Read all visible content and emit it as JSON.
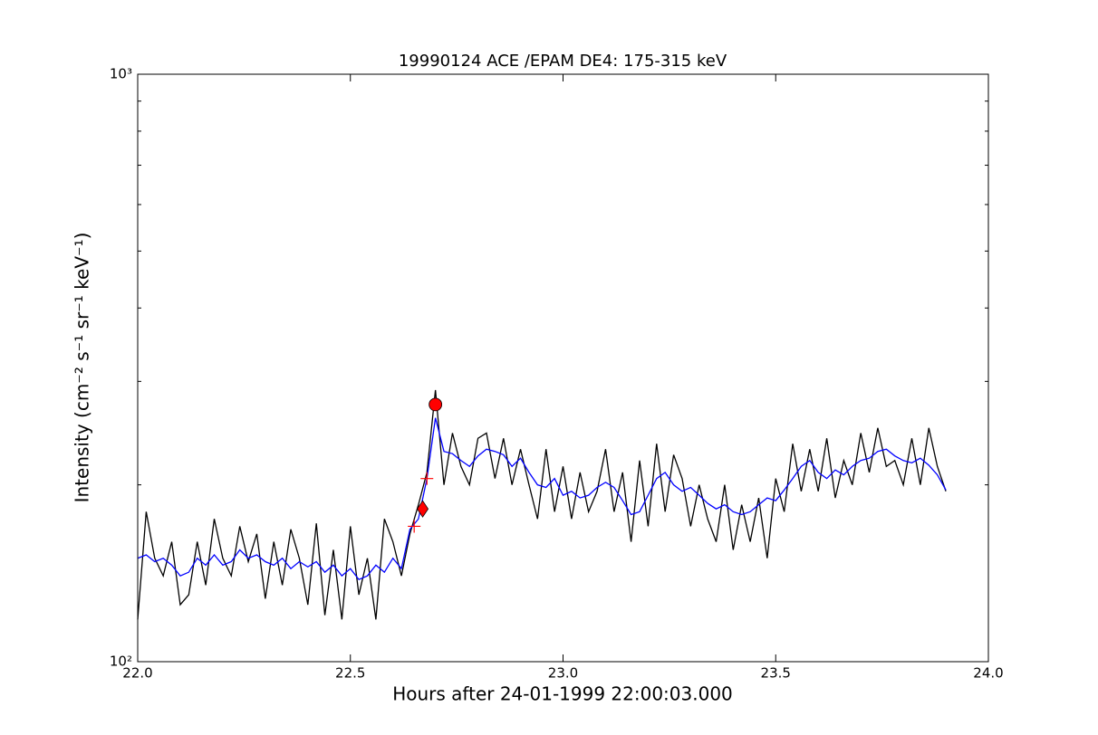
{
  "chart_data": {
    "type": "line",
    "title": "19990124 ACE /EPAM DE4: 175-315 keV",
    "x_label": "Hours after 24-01-1999 22:00:03.000",
    "y_label": "Intensity (cm⁻² s⁻¹ sr⁻¹ keV⁻¹)",
    "log_y": true,
    "xlim": [
      22,
      24
    ],
    "ylim": [
      100,
      1000
    ],
    "xticks": [
      {
        "value": 22,
        "label": "22.0"
      },
      {
        "value": 22.5,
        "label": "22.5"
      },
      {
        "value": 23,
        "label": "23.0"
      },
      {
        "value": 23.5,
        "label": "23.5"
      },
      {
        "value": 24,
        "label": "24.0"
      }
    ],
    "yticks": [
      {
        "value": 100,
        "label": "10²"
      },
      {
        "value": 1000,
        "label": "10³"
      }
    ],
    "yminor": [
      200,
      300,
      400,
      500,
      600,
      700,
      800,
      900
    ],
    "x": [
      22.0,
      22.02,
      22.04,
      22.06,
      22.08,
      22.1,
      22.12,
      22.14,
      22.16,
      22.18,
      22.2,
      22.22,
      22.24,
      22.26,
      22.28,
      22.3,
      22.32,
      22.34,
      22.36,
      22.38,
      22.4,
      22.42,
      22.44,
      22.46,
      22.48,
      22.5,
      22.52,
      22.54,
      22.56,
      22.58,
      22.6,
      22.62,
      22.64,
      22.66,
      22.68,
      22.7,
      22.72,
      22.74,
      22.76,
      22.78,
      22.8,
      22.82,
      22.84,
      22.86,
      22.88,
      22.9,
      22.92,
      22.94,
      22.96,
      22.98,
      23.0,
      23.02,
      23.04,
      23.06,
      23.08,
      23.1,
      23.12,
      23.14,
      23.16,
      23.18,
      23.2,
      23.22,
      23.24,
      23.26,
      23.28,
      23.3,
      23.32,
      23.34,
      23.36,
      23.38,
      23.4,
      23.42,
      23.44,
      23.46,
      23.48,
      23.5,
      23.52,
      23.54,
      23.56,
      23.58,
      23.6,
      23.62,
      23.64,
      23.66,
      23.68,
      23.7,
      23.72,
      23.74,
      23.76,
      23.78,
      23.8,
      23.82,
      23.84,
      23.86,
      23.88,
      23.9
    ],
    "series": [
      {
        "color": "#000000",
        "values": [
          118,
          180,
          150,
          140,
          160,
          125,
          130,
          160,
          135,
          175,
          150,
          140,
          170,
          148,
          165,
          128,
          160,
          135,
          168,
          150,
          125,
          172,
          120,
          155,
          118,
          170,
          130,
          150,
          118,
          175,
          160,
          140,
          165,
          185,
          210,
          290,
          200,
          245,
          215,
          200,
          240,
          245,
          205,
          240,
          200,
          230,
          200,
          175,
          230,
          180,
          215,
          175,
          210,
          180,
          195,
          230,
          180,
          210,
          160,
          220,
          170,
          235,
          180,
          225,
          205,
          170,
          200,
          175,
          160,
          200,
          155,
          185,
          160,
          190,
          150,
          205,
          180,
          235,
          195,
          230,
          195,
          240,
          190,
          220,
          200,
          245,
          210,
          250,
          215,
          220,
          200,
          240,
          200,
          250,
          215,
          195
        ]
      },
      {
        "color": "#0000ff",
        "values": [
          150,
          152,
          148,
          150,
          146,
          140,
          142,
          150,
          146,
          152,
          146,
          148,
          155,
          150,
          152,
          148,
          146,
          150,
          144,
          148,
          145,
          148,
          142,
          146,
          140,
          144,
          138,
          140,
          146,
          142,
          150,
          144,
          168,
          175,
          205,
          260,
          228,
          226,
          220,
          215,
          224,
          230,
          228,
          225,
          215,
          222,
          210,
          200,
          198,
          205,
          192,
          195,
          190,
          192,
          198,
          202,
          198,
          188,
          178,
          180,
          192,
          205,
          210,
          200,
          195,
          198,
          192,
          186,
          182,
          185,
          180,
          178,
          180,
          185,
          190,
          188,
          196,
          205,
          215,
          220,
          210,
          205,
          212,
          208,
          215,
          220,
          222,
          228,
          230,
          224,
          220,
          218,
          222,
          216,
          208,
          196
        ]
      }
    ],
    "markers": [
      {
        "shape": "plus",
        "color": "#ff0000",
        "x": 22.65,
        "y": 170
      },
      {
        "shape": "diamond",
        "color": "#ff0000",
        "x": 22.67,
        "y": 182
      },
      {
        "shape": "plus",
        "color": "#ff0000",
        "x": 22.68,
        "y": 205
      },
      {
        "shape": "circle",
        "color": "#ff0000",
        "x": 22.7,
        "y": 274
      }
    ]
  }
}
